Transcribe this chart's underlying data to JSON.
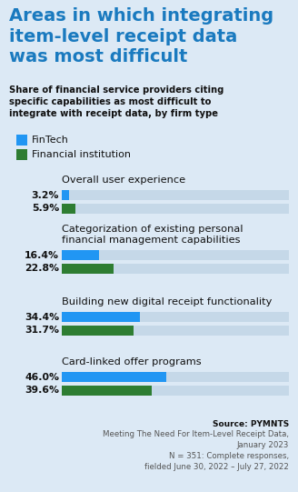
{
  "title": "Areas in which integrating\nitem-level receipt data\nwas most difficult",
  "subtitle": "Share of financial service providers citing\nspecific capabilities as most difficult to\nintegrate with receipt data, by firm type",
  "background_color": "#dce9f5",
  "title_color": "#1a7abf",
  "subtitle_color": "#111111",
  "categories": [
    "Overall user experience",
    "Categorization of existing personal\nfinancial management capabilities",
    "Building new digital receipt functionality",
    "Card-linked offer programs"
  ],
  "fintech_values": [
    3.2,
    16.4,
    34.4,
    46.0
  ],
  "fintech_labels": [
    "3.2%",
    "16.4%",
    "34.4%",
    "46.0%"
  ],
  "institution_values": [
    5.9,
    22.8,
    31.7,
    39.6
  ],
  "institution_labels": [
    "5.9%",
    "22.8%",
    "31.7%",
    "39.6%"
  ],
  "fintech_color": "#2196f3",
  "institution_color": "#2e7d32",
  "bar_bg_color": "#c5d8e8",
  "legend_fintech": "FinTech",
  "legend_institution": "Financial institution",
  "source_bold": "Source: PYMNTS",
  "source_rest": "Meeting The Need For Item-Level Receipt Data,\nJanuary 2023\nN = 351: Complete responses,\nfielded June 30, 2022 – July 27, 2022"
}
